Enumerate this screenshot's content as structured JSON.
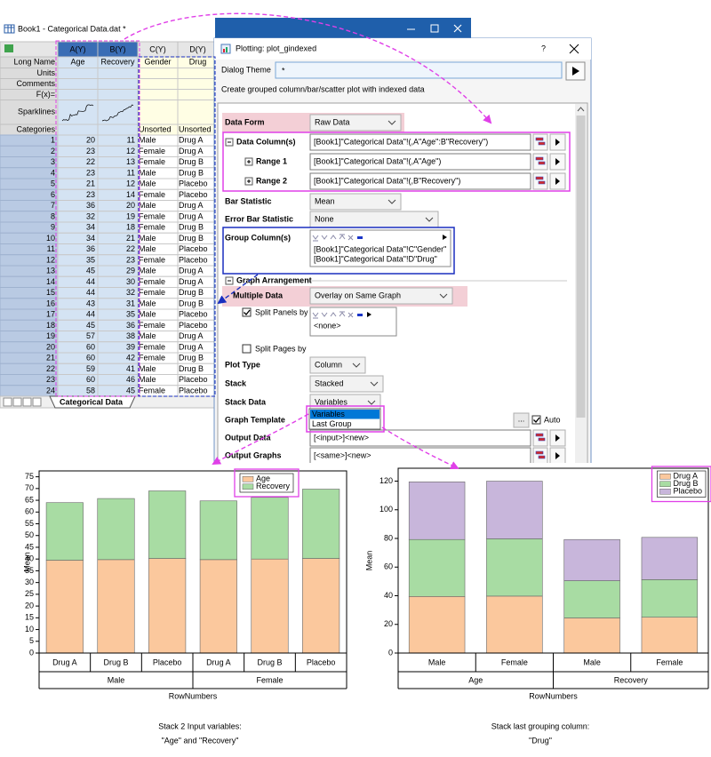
{
  "worksheet": {
    "title": "Book1 - Categorical Data.dat *",
    "row_headers": [
      "Long Name",
      "Units",
      "Comments",
      "F(x)=",
      "Sparklines",
      "Categories"
    ],
    "columns": [
      {
        "name": "A(Y)",
        "long_name": "Age",
        "selected": true
      },
      {
        "name": "B(Y)",
        "long_name": "Recovery",
        "selected": true
      },
      {
        "name": "C(Y)",
        "long_name": "Gender",
        "categories": "Unsorted",
        "selected": false
      },
      {
        "name": "D(Y)",
        "long_name": "Drug",
        "categories": "Unsorted",
        "selected": false
      }
    ],
    "row_numbers": [
      1,
      2,
      3,
      4,
      5,
      6,
      7,
      8,
      9,
      10,
      11,
      12,
      13,
      14,
      15,
      16,
      17,
      18,
      19,
      20,
      21,
      22,
      23,
      24
    ],
    "rows": [
      [
        20,
        11,
        "Male",
        "Drug A"
      ],
      [
        23,
        12,
        "Female",
        "Drug A"
      ],
      [
        22,
        13,
        "Female",
        "Drug B"
      ],
      [
        23,
        11,
        "Male",
        "Drug B"
      ],
      [
        21,
        12,
        "Male",
        "Placebo"
      ],
      [
        23,
        14,
        "Female",
        "Placebo"
      ],
      [
        36,
        20,
        "Male",
        "Drug A"
      ],
      [
        32,
        19,
        "Female",
        "Drug A"
      ],
      [
        34,
        18,
        "Female",
        "Drug B"
      ],
      [
        34,
        21,
        "Male",
        "Drug B"
      ],
      [
        36,
        22,
        "Male",
        "Placebo"
      ],
      [
        35,
        23,
        "Female",
        "Placebo"
      ],
      [
        45,
        29,
        "Male",
        "Drug A"
      ],
      [
        44,
        30,
        "Female",
        "Drug A"
      ],
      [
        44,
        32,
        "Female",
        "Drug B"
      ],
      [
        43,
        31,
        "Male",
        "Drug B"
      ],
      [
        44,
        35,
        "Male",
        "Placebo"
      ],
      [
        45,
        36,
        "Female",
        "Placebo"
      ],
      [
        57,
        38,
        "Male",
        "Drug A"
      ],
      [
        60,
        39,
        "Female",
        "Drug A"
      ],
      [
        60,
        42,
        "Female",
        "Drug B"
      ],
      [
        59,
        41,
        "Male",
        "Drug B"
      ],
      [
        60,
        46,
        "Male",
        "Placebo"
      ],
      [
        58,
        45,
        "Female",
        "Placebo"
      ]
    ],
    "tab": "Categorical Data"
  },
  "dialog": {
    "title": "Plotting: plot_gindexed",
    "help": "?",
    "theme_label": "Dialog Theme",
    "theme_value": "*",
    "description": "Create grouped column/bar/scatter plot with indexed data",
    "data_form": {
      "label": "Data Form",
      "value": "Raw Data"
    },
    "data_columns": {
      "label": "Data Column(s)",
      "value": "[Book1]\"Categorical Data\"!(,A\"Age\":B\"Recovery\")"
    },
    "range1": {
      "label": "Range 1",
      "value": "[Book1]\"Categorical Data\"!(,A\"Age\")"
    },
    "range2": {
      "label": "Range 2",
      "value": "[Book1]\"Categorical Data\"!(,B\"Recovery\")"
    },
    "bar_statistic": {
      "label": "Bar Statistic",
      "value": "Mean"
    },
    "error_bar_statistic": {
      "label": "Error Bar Statistic",
      "value": "None"
    },
    "group_columns": {
      "label": "Group Column(s)",
      "items": [
        "[Book1]\"Categorical Data\"!C\"Gender\"",
        "[Book1]\"Categorical Data\"!D\"Drug\""
      ]
    },
    "graph_arrangement": "Graph Arrangement",
    "multiple_data": {
      "label": "Multiple Data",
      "value": "Overlay on Same Graph"
    },
    "split_panels_by": {
      "label": "Split Panels by",
      "checked": true,
      "items": [
        "<none>"
      ]
    },
    "split_pages_by": {
      "label": "Split Pages by",
      "checked": false
    },
    "plot_type": {
      "label": "Plot Type",
      "value": "Column"
    },
    "stack": {
      "label": "Stack",
      "value": "Stacked"
    },
    "stack_data": {
      "label": "Stack Data",
      "value": "Variables",
      "options": [
        "Variables",
        "Last Group"
      ]
    },
    "graph_template": {
      "label": "Graph Template",
      "browse": "...",
      "auto_label": "Auto",
      "auto_checked": true
    },
    "output_data": {
      "label": "Output Data",
      "value": "[<input>]<new>"
    },
    "output_graphs": {
      "label": "Output Graphs",
      "value": "[<same>]<new>"
    }
  },
  "chart_data": [
    {
      "type": "bar",
      "stacked": true,
      "categories": [
        "Drug A",
        "Drug B",
        "Placebo",
        "Drug A",
        "Drug B",
        "Placebo"
      ],
      "groups": [
        "Male",
        "Female"
      ],
      "x_label": "RowNumbers",
      "y_label": "Mean",
      "series": [
        {
          "name": "Age",
          "color": "#fbc89d",
          "values": [
            39.5,
            39.75,
            40.25,
            39.75,
            40,
            40.25
          ]
        },
        {
          "name": "Recovery",
          "color": "#a8dca3",
          "values": [
            24.5,
            26,
            28.75,
            25,
            26.25,
            29.5
          ]
        }
      ],
      "ylim": [
        0,
        77.5
      ],
      "yticks": [
        0,
        5,
        10,
        15,
        20,
        25,
        30,
        35,
        40,
        45,
        50,
        55,
        60,
        65,
        70,
        75
      ],
      "legend": "top-right",
      "caption": [
        "Stack 2 Input variables:",
        "\"Age\" and \"Recovery\""
      ]
    },
    {
      "type": "bar",
      "stacked": true,
      "categories": [
        "Male",
        "Female",
        "Male",
        "Female"
      ],
      "groups": [
        "Age",
        "Recovery"
      ],
      "x_label": "RowNumbers",
      "y_label": "Mean",
      "series": [
        {
          "name": "Drug A",
          "color": "#fbc89d",
          "values": [
            39.5,
            39.75,
            24.5,
            25
          ]
        },
        {
          "name": "Drug B",
          "color": "#a8dca3",
          "values": [
            39.75,
            40,
            26,
            26.25
          ]
        },
        {
          "name": "Placebo",
          "color": "#c8b6db",
          "values": [
            40.25,
            40.25,
            28.75,
            29.5
          ]
        }
      ],
      "ylim": [
        0,
        129
      ],
      "yticks": [
        0,
        20,
        40,
        60,
        80,
        100,
        120
      ],
      "legend": "top-right",
      "caption": [
        "Stack last grouping column:",
        "\"Drug\""
      ]
    }
  ]
}
